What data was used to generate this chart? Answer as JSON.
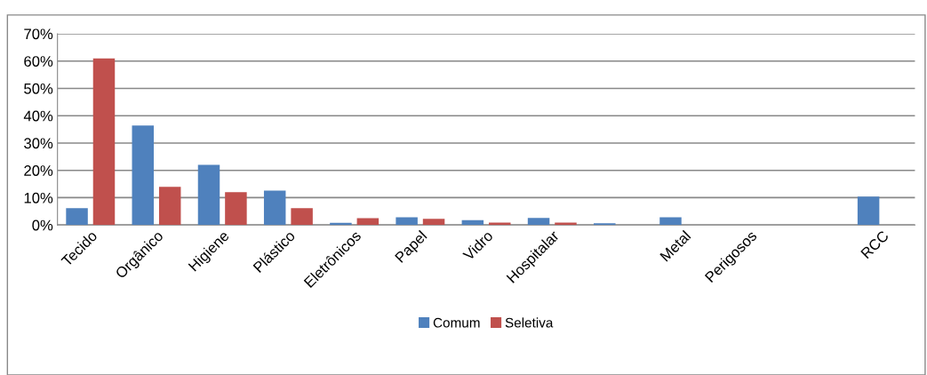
{
  "chart_data": {
    "type": "bar",
    "categories": [
      "Tecido",
      "Orgânico",
      "Higiene",
      "Plástico",
      "Eletrônicos",
      "Papel",
      "Vidro",
      "Hospitalar",
      null,
      "Metal",
      "Perigosos",
      null,
      "RCC"
    ],
    "series": [
      {
        "name": "Comum",
        "color": "#4f81bd",
        "values": [
          6.2,
          36.4,
          22,
          12.6,
          0.8,
          2.8,
          1.8,
          2.6,
          0.6,
          2.8,
          0,
          0,
          10.4
        ]
      },
      {
        "name": "Seletiva",
        "color": "#c0504d",
        "values": [
          61,
          14,
          12,
          6.2,
          2.5,
          2.3,
          0.9,
          0.9,
          null,
          0,
          0,
          null,
          0
        ]
      }
    ],
    "ylim": [
      0,
      70
    ],
    "yticks": [
      {
        "value": 0,
        "label": "0%"
      },
      {
        "value": 10,
        "label": "10%"
      },
      {
        "value": 20,
        "label": "20%"
      },
      {
        "value": 30,
        "label": "30%"
      },
      {
        "value": 40,
        "label": "40%"
      },
      {
        "value": 50,
        "label": "50%"
      },
      {
        "value": 60,
        "label": "60%"
      },
      {
        "value": 70,
        "label": "70%"
      }
    ],
    "grid": "y",
    "legend": "bottom"
  }
}
